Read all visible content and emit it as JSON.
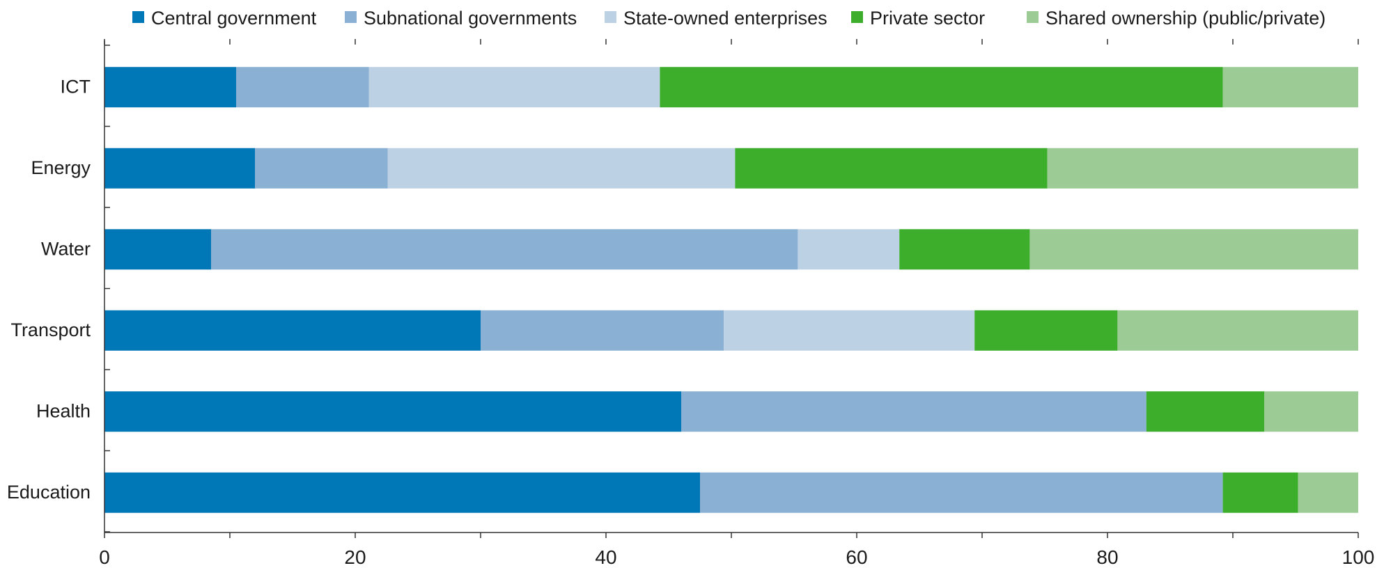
{
  "chart_data": {
    "type": "bar",
    "orientation": "horizontal",
    "stacked": true,
    "categories": [
      "ICT",
      "Energy",
      "Water",
      "Transport",
      "Health",
      "Education"
    ],
    "series": [
      {
        "name": "Central government",
        "color": "#0077b6",
        "values": [
          10.5,
          12,
          8.5,
          30,
          46,
          47.5
        ]
      },
      {
        "name": "Subnational governments",
        "color": "#8ab0d3",
        "values": [
          10.6,
          10.6,
          46.8,
          19.4,
          37.1,
          41.7
        ]
      },
      {
        "name": "State-owned enterprises",
        "color": "#bdd1e5",
        "values": [
          23.2,
          27.7,
          8.1,
          20,
          0,
          0
        ]
      },
      {
        "name": "Private sector",
        "color": "#3dae2b",
        "values": [
          44.9,
          24.9,
          10.4,
          11.4,
          9.4,
          6
        ]
      },
      {
        "name": "Shared ownership (public/private)",
        "color": "#9ccb96",
        "values": [
          10.8,
          24.8,
          26.2,
          19.2,
          7.5,
          4.8
        ]
      }
    ],
    "x_ticks": [
      0,
      20,
      40,
      60,
      80,
      100
    ],
    "xlim": [
      0,
      100
    ],
    "grid": false,
    "legend_position": "top"
  }
}
